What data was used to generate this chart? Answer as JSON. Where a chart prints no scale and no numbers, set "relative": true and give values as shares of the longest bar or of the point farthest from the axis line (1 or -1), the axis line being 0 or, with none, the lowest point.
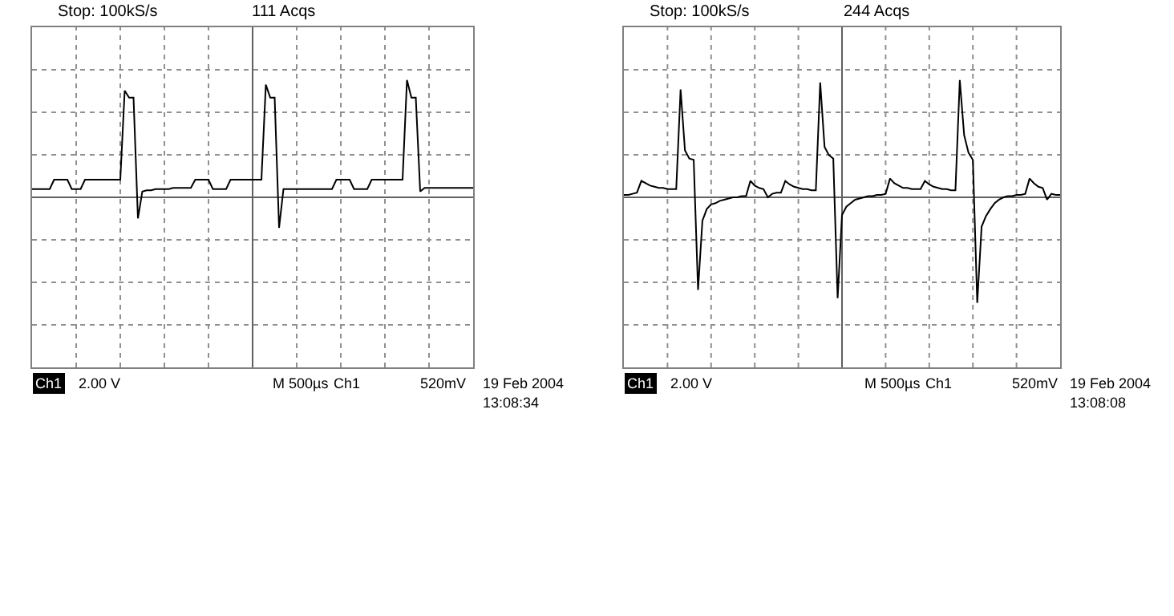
{
  "chart_data": [
    {
      "type": "line",
      "relative": true,
      "title": "Stop: 100kS/s",
      "subtitle": "111 Acqs",
      "grid": true,
      "marker": "none",
      "line_style": "solid",
      "categories": [
        null,
        null,
        null,
        null,
        null,
        null,
        null,
        null,
        null,
        null,
        null,
        null,
        null,
        null,
        null,
        null,
        null,
        null,
        null,
        null,
        null,
        null,
        null,
        null,
        null,
        null,
        null,
        null,
        null,
        null,
        null,
        null,
        null,
        null,
        null,
        null,
        null,
        null,
        null,
        null,
        null,
        null,
        null,
        null,
        null,
        null,
        null,
        null,
        null,
        null,
        null,
        null,
        null,
        null,
        null,
        null,
        null,
        null,
        null,
        null,
        null,
        null,
        null,
        null,
        null,
        null,
        null,
        null,
        null,
        null,
        null,
        null,
        null,
        null,
        null,
        null,
        null,
        null,
        null,
        null,
        null,
        null,
        null,
        null,
        null,
        null,
        null,
        null,
        null,
        null,
        null,
        null,
        null,
        null,
        null,
        null,
        null,
        null,
        null,
        null,
        null
      ],
      "series": [
        {
          "color": "#000000",
          "values": [
            0.07,
            0.07,
            0.07,
            0.07,
            0.07,
            0.15,
            0.15,
            0.15,
            0.15,
            0.07,
            0.07,
            0.07,
            0.15,
            0.15,
            0.15,
            0.15,
            0.15,
            0.15,
            0.15,
            0.15,
            0.15,
            0.91,
            0.85,
            0.85,
            -0.18,
            0.05,
            0.06,
            0.06,
            0.07,
            0.07,
            0.07,
            0.07,
            0.08,
            0.08,
            0.08,
            0.08,
            0.08,
            0.15,
            0.15,
            0.15,
            0.15,
            0.07,
            0.07,
            0.07,
            0.07,
            0.15,
            0.15,
            0.15,
            0.15,
            0.15,
            0.15,
            0.15,
            0.15,
            0.96,
            0.85,
            0.85,
            -0.26,
            0.07,
            0.07,
            0.07,
            0.07,
            0.07,
            0.07,
            0.07,
            0.07,
            0.07,
            0.07,
            0.07,
            0.07,
            0.15,
            0.15,
            0.15,
            0.15,
            0.07,
            0.07,
            0.07,
            0.07,
            0.15,
            0.15,
            0.15,
            0.15,
            0.15,
            0.15,
            0.15,
            0.15,
            1.0,
            0.85,
            0.85,
            0.05,
            0.08,
            0.08,
            0.08,
            0.08,
            0.08,
            0.08,
            0.08,
            0.08,
            0.08,
            0.08,
            0.08,
            0.08
          ]
        }
      ],
      "annotations": [
        "Ch1",
        "2.00 V",
        "M 500µs",
        "Ch1",
        "520mV",
        "19 Feb 2004",
        "13:08:34"
      ]
    },
    {
      "type": "line",
      "relative": true,
      "title": "Stop: 100kS/s",
      "subtitle": "244 Acqs",
      "grid": true,
      "marker": "none",
      "line_style": "solid",
      "categories": [
        null,
        null,
        null,
        null,
        null,
        null,
        null,
        null,
        null,
        null,
        null,
        null,
        null,
        null,
        null,
        null,
        null,
        null,
        null,
        null,
        null,
        null,
        null,
        null,
        null,
        null,
        null,
        null,
        null,
        null,
        null,
        null,
        null,
        null,
        null,
        null,
        null,
        null,
        null,
        null,
        null,
        null,
        null,
        null,
        null,
        null,
        null,
        null,
        null,
        null,
        null,
        null,
        null,
        null,
        null,
        null,
        null,
        null,
        null,
        null,
        null,
        null,
        null,
        null,
        null,
        null,
        null,
        null,
        null,
        null,
        null,
        null,
        null,
        null,
        null,
        null,
        null,
        null,
        null,
        null,
        null,
        null,
        null,
        null,
        null,
        null,
        null,
        null,
        null,
        null,
        null,
        null,
        null,
        null,
        null,
        null,
        null,
        null,
        null,
        null,
        null
      ],
      "series": [
        {
          "color": "#000000",
          "values": [
            0.02,
            0.02,
            0.03,
            0.04,
            0.14,
            0.12,
            0.1,
            0.09,
            0.08,
            0.08,
            0.07,
            0.07,
            0.07,
            0.92,
            0.4,
            0.33,
            0.32,
            -0.79,
            -0.2,
            -0.1,
            -0.06,
            -0.05,
            -0.03,
            -0.02,
            -0.01,
            0,
            0,
            0.01,
            0.01,
            0.14,
            0.1,
            0.08,
            0.07,
            0.0,
            0.03,
            0.04,
            0.04,
            0.14,
            0.11,
            0.09,
            0.08,
            0.07,
            0.07,
            0.06,
            0.06,
            0.98,
            0.43,
            0.36,
            0.33,
            -0.86,
            -0.15,
            -0.08,
            -0.05,
            -0.02,
            -0.01,
            0,
            0.01,
            0.01,
            0.02,
            0.02,
            0.03,
            0.16,
            0.12,
            0.1,
            0.08,
            0.08,
            0.07,
            0.07,
            0.07,
            0.14,
            0.11,
            0.09,
            0.08,
            0.07,
            0.07,
            0.06,
            0.06,
            1.0,
            0.53,
            0.38,
            0.32,
            -0.9,
            -0.25,
            -0.16,
            -0.1,
            -0.05,
            -0.02,
            0,
            0.01,
            0.01,
            0.02,
            0.02,
            0.03,
            0.16,
            0.12,
            0.09,
            0.08,
            -0.02,
            0.03,
            0.02,
            0.02
          ]
        }
      ],
      "annotations": [
        "Ch1",
        "2.00 V",
        "M 500µs",
        "Ch1",
        "520mV",
        "19 Feb 2004",
        "13:08:08"
      ]
    }
  ]
}
